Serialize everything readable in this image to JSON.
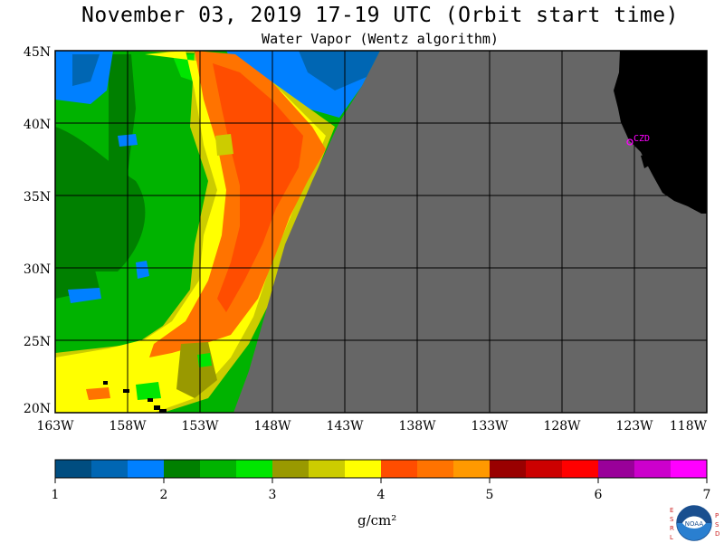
{
  "title": "November 03, 2019  17-19 UTC  (Orbit start time)",
  "subtitle": "Water Vapor (Wentz algorithm)",
  "map": {
    "lat_labels": [
      "45N",
      "40N",
      "35N",
      "30N",
      "25N",
      "20N"
    ],
    "lon_labels": [
      "163W",
      "158W",
      "153W",
      "148W",
      "143W",
      "138W",
      "133W",
      "128W",
      "123W",
      "118W"
    ],
    "station_label": "CZD",
    "colors": {
      "no_data": "#666666",
      "land": "#000000",
      "grid": "#000000",
      "station": "#ff00ff"
    }
  },
  "colorbar": {
    "tick_labels": [
      "1",
      "2",
      "3",
      "4",
      "5",
      "6",
      "7"
    ],
    "unit_label": "g/cm²",
    "colors": [
      "#004d80",
      "#0066b3",
      "#0080ff",
      "#008000",
      "#00b300",
      "#00e600",
      "#999900",
      "#cccc00",
      "#ffff00",
      "#ff4d00",
      "#ff7300",
      "#ff9900",
      "#990000",
      "#cc0000",
      "#ff0000",
      "#990099",
      "#cc00cc",
      "#ff00ff"
    ]
  },
  "logo": {
    "left_letters": "ESRL",
    "right_letters": "PSD",
    "center_text": "NOAA"
  }
}
